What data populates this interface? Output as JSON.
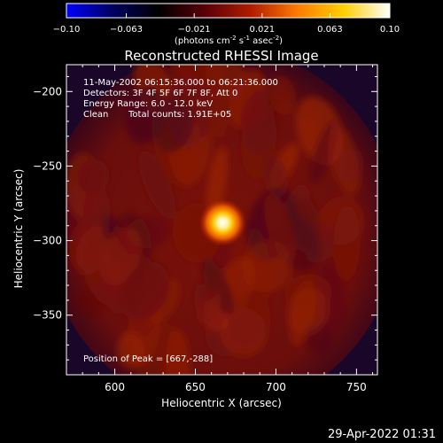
{
  "chart_data": {
    "type": "heatmap",
    "title": "Reconstructed RHESSI Image",
    "xlabel": "Heliocentric X (arcsec)",
    "ylabel": "Heliocentric Y (arcsec)",
    "xlim": [
      570,
      763
    ],
    "ylim": [
      -390,
      -182
    ],
    "x_ticks": [
      600,
      650,
      700,
      750
    ],
    "y_ticks": [
      -200,
      -250,
      -300,
      -350
    ],
    "annotations": [
      "11-May-2002 06:15:36.000 to 06:21:36.000",
      "Detectors: 3F 4F 5F 6F 7F 8F, Att 0",
      "Energy Range: 6.0 - 12.0 keV",
      "Clean",
      "Total counts: 1.91E+05"
    ],
    "peak_label": "Position of Peak = [667,-288]",
    "peak": {
      "x": 667,
      "y": -288
    },
    "source_fwhm_arcsec": 14,
    "colorbar": {
      "min": -0.1,
      "max": 0.1,
      "ticks": [
        "-0.10",
        "-0.063",
        "-0.021",
        "0.021",
        "0.063",
        "0.10"
      ],
      "label_parts": [
        "(photons cm",
        "-2",
        " s",
        "-1",
        " asec",
        "-2",
        ")"
      ],
      "colormap": [
        "#0000ff",
        "#000060",
        "#000000",
        "#5a0008",
        "#b01c00",
        "#ff7a00",
        "#ffd000",
        "#ffffff"
      ]
    },
    "grid": false
  },
  "footer": {
    "timestamp": "29-Apr-2022 01:31"
  }
}
